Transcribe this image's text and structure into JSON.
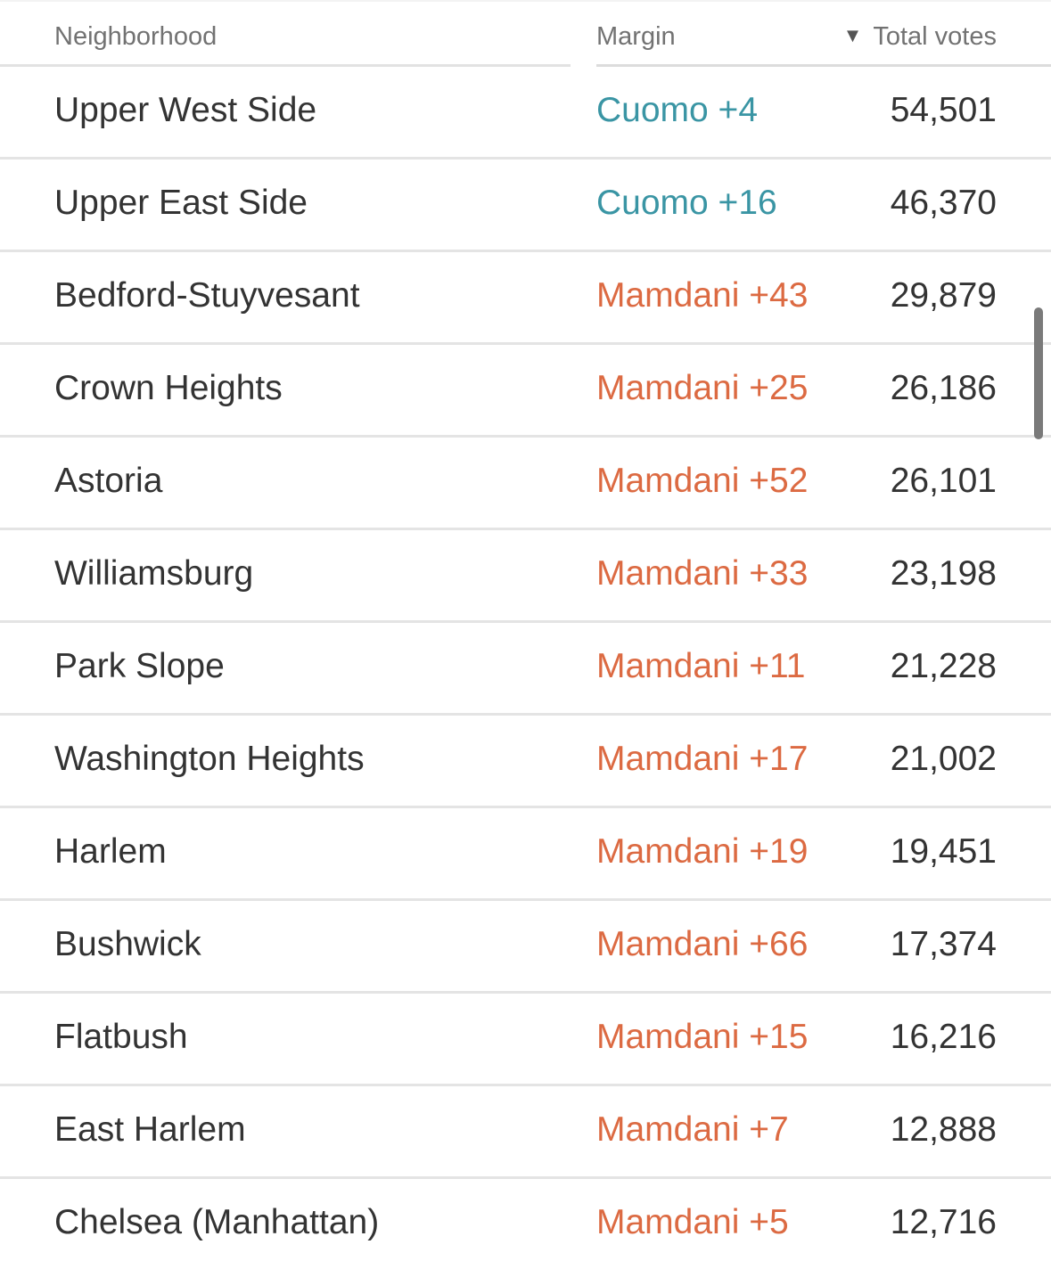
{
  "table": {
    "headers": {
      "neighborhood": "Neighborhood",
      "margin": "Margin",
      "total_votes": "Total votes",
      "sort_indicator": "▼"
    },
    "sort": {
      "column": "total_votes",
      "direction": "descending",
      "icon": "triangle-down"
    },
    "colors": {
      "cuomo": "#3a95a4",
      "mamdani": "#dc6a42",
      "text": "#333333",
      "header_text": "#727272"
    },
    "rows": [
      {
        "neighborhood": "Upper West Side",
        "margin": "Cuomo +4",
        "leader": "cuomo",
        "total_votes": "54,501"
      },
      {
        "neighborhood": "Upper East Side",
        "margin": "Cuomo +16",
        "leader": "cuomo",
        "total_votes": "46,370"
      },
      {
        "neighborhood": "Bedford-Stuyvesant",
        "margin": "Mamdani +43",
        "leader": "mamdani",
        "total_votes": "29,879"
      },
      {
        "neighborhood": "Crown Heights",
        "margin": "Mamdani +25",
        "leader": "mamdani",
        "total_votes": "26,186"
      },
      {
        "neighborhood": "Astoria",
        "margin": "Mamdani +52",
        "leader": "mamdani",
        "total_votes": "26,101"
      },
      {
        "neighborhood": "Williamsburg",
        "margin": "Mamdani +33",
        "leader": "mamdani",
        "total_votes": "23,198"
      },
      {
        "neighborhood": "Park Slope",
        "margin": "Mamdani +11",
        "leader": "mamdani",
        "total_votes": "21,228"
      },
      {
        "neighborhood": "Washington Heights",
        "margin": "Mamdani +17",
        "leader": "mamdani",
        "total_votes": "21,002"
      },
      {
        "neighborhood": "Harlem",
        "margin": "Mamdani +19",
        "leader": "mamdani",
        "total_votes": "19,451"
      },
      {
        "neighborhood": "Bushwick",
        "margin": "Mamdani +66",
        "leader": "mamdani",
        "total_votes": "17,374"
      },
      {
        "neighborhood": "Flatbush",
        "margin": "Mamdani +15",
        "leader": "mamdani",
        "total_votes": "16,216"
      },
      {
        "neighborhood": "East Harlem",
        "margin": "Mamdani +7",
        "leader": "mamdani",
        "total_votes": "12,888"
      },
      {
        "neighborhood": "Chelsea (Manhattan)",
        "margin": "Mamdani +5",
        "leader": "mamdani",
        "total_votes": "12,716"
      }
    ]
  }
}
